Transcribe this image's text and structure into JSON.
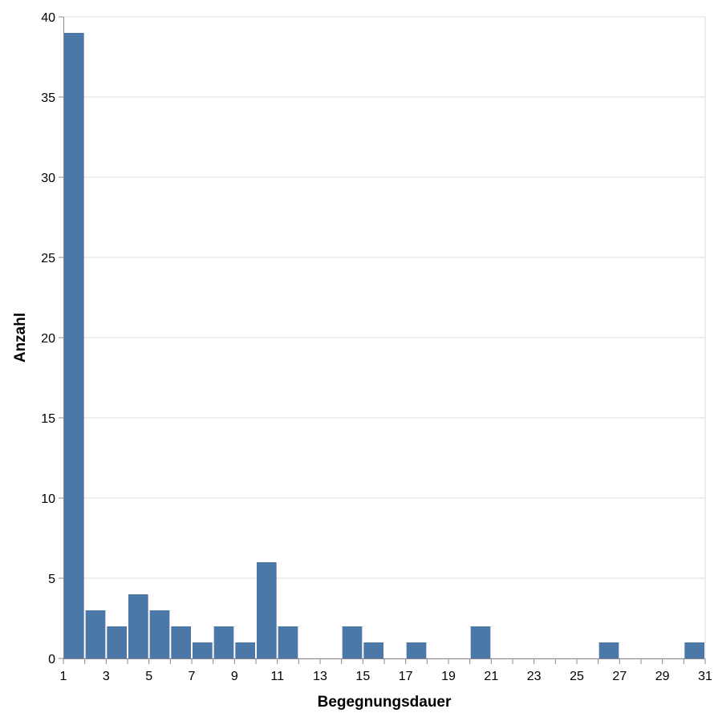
{
  "chart_data": {
    "type": "bar",
    "title": "",
    "xlabel": "Begegnungsdauer",
    "ylabel": "Anzahl",
    "ylim": [
      0,
      40
    ],
    "xlim": [
      1,
      31
    ],
    "grid": true,
    "y_ticks": [
      0,
      5,
      10,
      15,
      20,
      25,
      30,
      35,
      40
    ],
    "x_ticks": [
      1,
      3,
      5,
      7,
      9,
      11,
      13,
      15,
      17,
      19,
      21,
      23,
      25,
      27,
      29,
      31
    ],
    "bar_color": "#4c78a8",
    "bins": [
      {
        "start": 1,
        "end": 2,
        "value": 39
      },
      {
        "start": 2,
        "end": 3,
        "value": 3
      },
      {
        "start": 3,
        "end": 4,
        "value": 2
      },
      {
        "start": 4,
        "end": 5,
        "value": 4
      },
      {
        "start": 5,
        "end": 6,
        "value": 3
      },
      {
        "start": 6,
        "end": 7,
        "value": 2
      },
      {
        "start": 7,
        "end": 8,
        "value": 1
      },
      {
        "start": 8,
        "end": 9,
        "value": 2
      },
      {
        "start": 9,
        "end": 10,
        "value": 1
      },
      {
        "start": 10,
        "end": 11,
        "value": 6
      },
      {
        "start": 11,
        "end": 12,
        "value": 2
      },
      {
        "start": 14,
        "end": 15,
        "value": 2
      },
      {
        "start": 15,
        "end": 16,
        "value": 1
      },
      {
        "start": 17,
        "end": 18,
        "value": 1
      },
      {
        "start": 20,
        "end": 21,
        "value": 2
      },
      {
        "start": 26,
        "end": 27,
        "value": 1
      },
      {
        "start": 30,
        "end": 31,
        "value": 1
      }
    ]
  }
}
